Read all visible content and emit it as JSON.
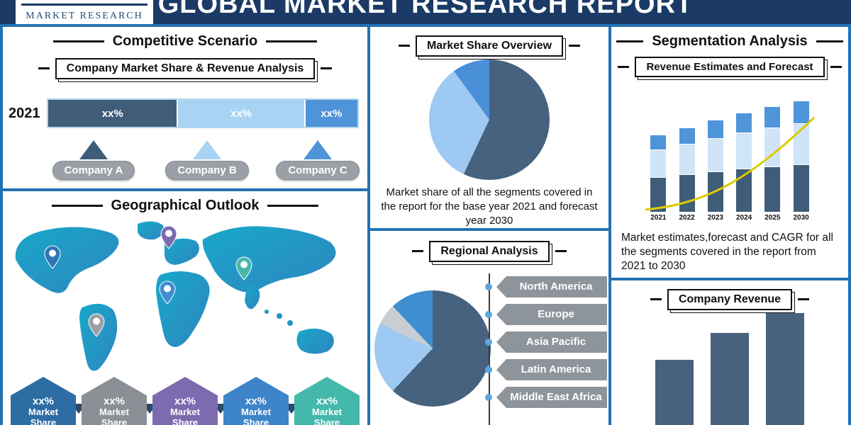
{
  "header": {
    "title": "GLOBAL MARKET RESEARCH REPORT",
    "logo": "MARKET RESEARCH"
  },
  "panels": {
    "competitive": {
      "title": "Competitive Scenario",
      "subtitle": "Company Market Share & Revenue Analysis",
      "year_label": "2021",
      "companies": [
        {
          "label": "Company A",
          "color": "#3f5d78"
        },
        {
          "label": "Company B",
          "color": "#a8d3f2"
        },
        {
          "label": "Company C",
          "color": "#4f93d8"
        }
      ]
    },
    "geographical": {
      "title": "Geographical Outlook",
      "badges": [
        {
          "pct": "xx%",
          "label": "Market Share",
          "color": "#2e6da4"
        },
        {
          "pct": "xx%",
          "label": "Market Share",
          "color": "#8b9096"
        },
        {
          "pct": "xx%",
          "label": "Market Share",
          "color": "#7d6bb0"
        },
        {
          "pct": "xx%",
          "label": "Market Share",
          "color": "#3d85c8"
        },
        {
          "pct": "xx%",
          "label": "Market Share",
          "color": "#45b8ac"
        }
      ],
      "pins": [
        {
          "color": "#2e75b6"
        },
        {
          "color": "#7d6bb0"
        },
        {
          "color": "#3e8ed0"
        },
        {
          "color": "#9aa0a6"
        },
        {
          "color": "#45b8ac"
        }
      ]
    },
    "market_share_overview": {
      "title": "Market Share Overview",
      "description": "Market share of all the segments covered in the report for the base year 2021 and forecast year 2030"
    },
    "regional": {
      "title": "Regional Analysis",
      "regions": [
        "North America",
        "Europe",
        "Asia Pacific",
        "Latin America",
        "Middle East Africa"
      ]
    },
    "segmentation": {
      "title": "Segmentation Analysis",
      "subtitle": "Revenue Estimates and Forecast",
      "description": "Market estimates,forecast and CAGR for all the segments covered in the report from 2021 to 2030"
    },
    "company_revenue": {
      "title": "Company Revenue"
    }
  },
  "chart_data": [
    {
      "id": "company-share-bar",
      "type": "bar",
      "orientation": "horizontal",
      "categories": [
        "2021"
      ],
      "series": [
        {
          "name": "Company A",
          "values": [
            42
          ],
          "color": "#3f5d78",
          "label": "xx%"
        },
        {
          "name": "Company B",
          "values": [
            41
          ],
          "color": "#a8d3f2",
          "label": "xx%"
        },
        {
          "name": "Company C",
          "values": [
            17
          ],
          "color": "#4f93d8",
          "label": "xx%"
        }
      ],
      "value_labels": [
        "xx%",
        "xx%",
        "xx%"
      ]
    },
    {
      "id": "market-share-pie",
      "type": "pie",
      "title": "Market Share Overview",
      "slices": [
        {
          "name": "segment-1",
          "value": 57,
          "color": "#46627f"
        },
        {
          "name": "segment-2",
          "value": 33,
          "color": "#9ec9f2"
        },
        {
          "name": "segment-3",
          "value": 10,
          "color": "#4a90d9"
        }
      ]
    },
    {
      "id": "regional-pie",
      "type": "pie",
      "title": "Regional Analysis",
      "slices": [
        {
          "name": "region-1",
          "value": 62,
          "color": "#46627f"
        },
        {
          "name": "region-2",
          "value": 20,
          "color": "#9ec9f2"
        },
        {
          "name": "region-3",
          "value": 6,
          "color": "#c9ced4"
        },
        {
          "name": "region-4",
          "value": 12,
          "color": "#3e8ed0"
        }
      ]
    },
    {
      "id": "revenue-forecast",
      "type": "bar",
      "stacked": true,
      "categories": [
        "2021",
        "2022",
        "2023",
        "2024",
        "2025",
        "2030"
      ],
      "series": [
        {
          "name": "segment-bottom",
          "color": "#3f5d78",
          "values": [
            48,
            52,
            56,
            60,
            63,
            66
          ]
        },
        {
          "name": "segment-middle",
          "color": "#cfe4f7",
          "values": [
            38,
            42,
            46,
            50,
            54,
            57
          ]
        },
        {
          "name": "segment-top",
          "color": "#4f95da",
          "values": [
            20,
            22,
            25,
            27,
            29,
            31
          ]
        }
      ],
      "trend_line_color": "#ddca00"
    },
    {
      "id": "company-revenue",
      "type": "bar",
      "values": [
        92,
        130,
        158
      ],
      "color": "#46627f"
    }
  ]
}
